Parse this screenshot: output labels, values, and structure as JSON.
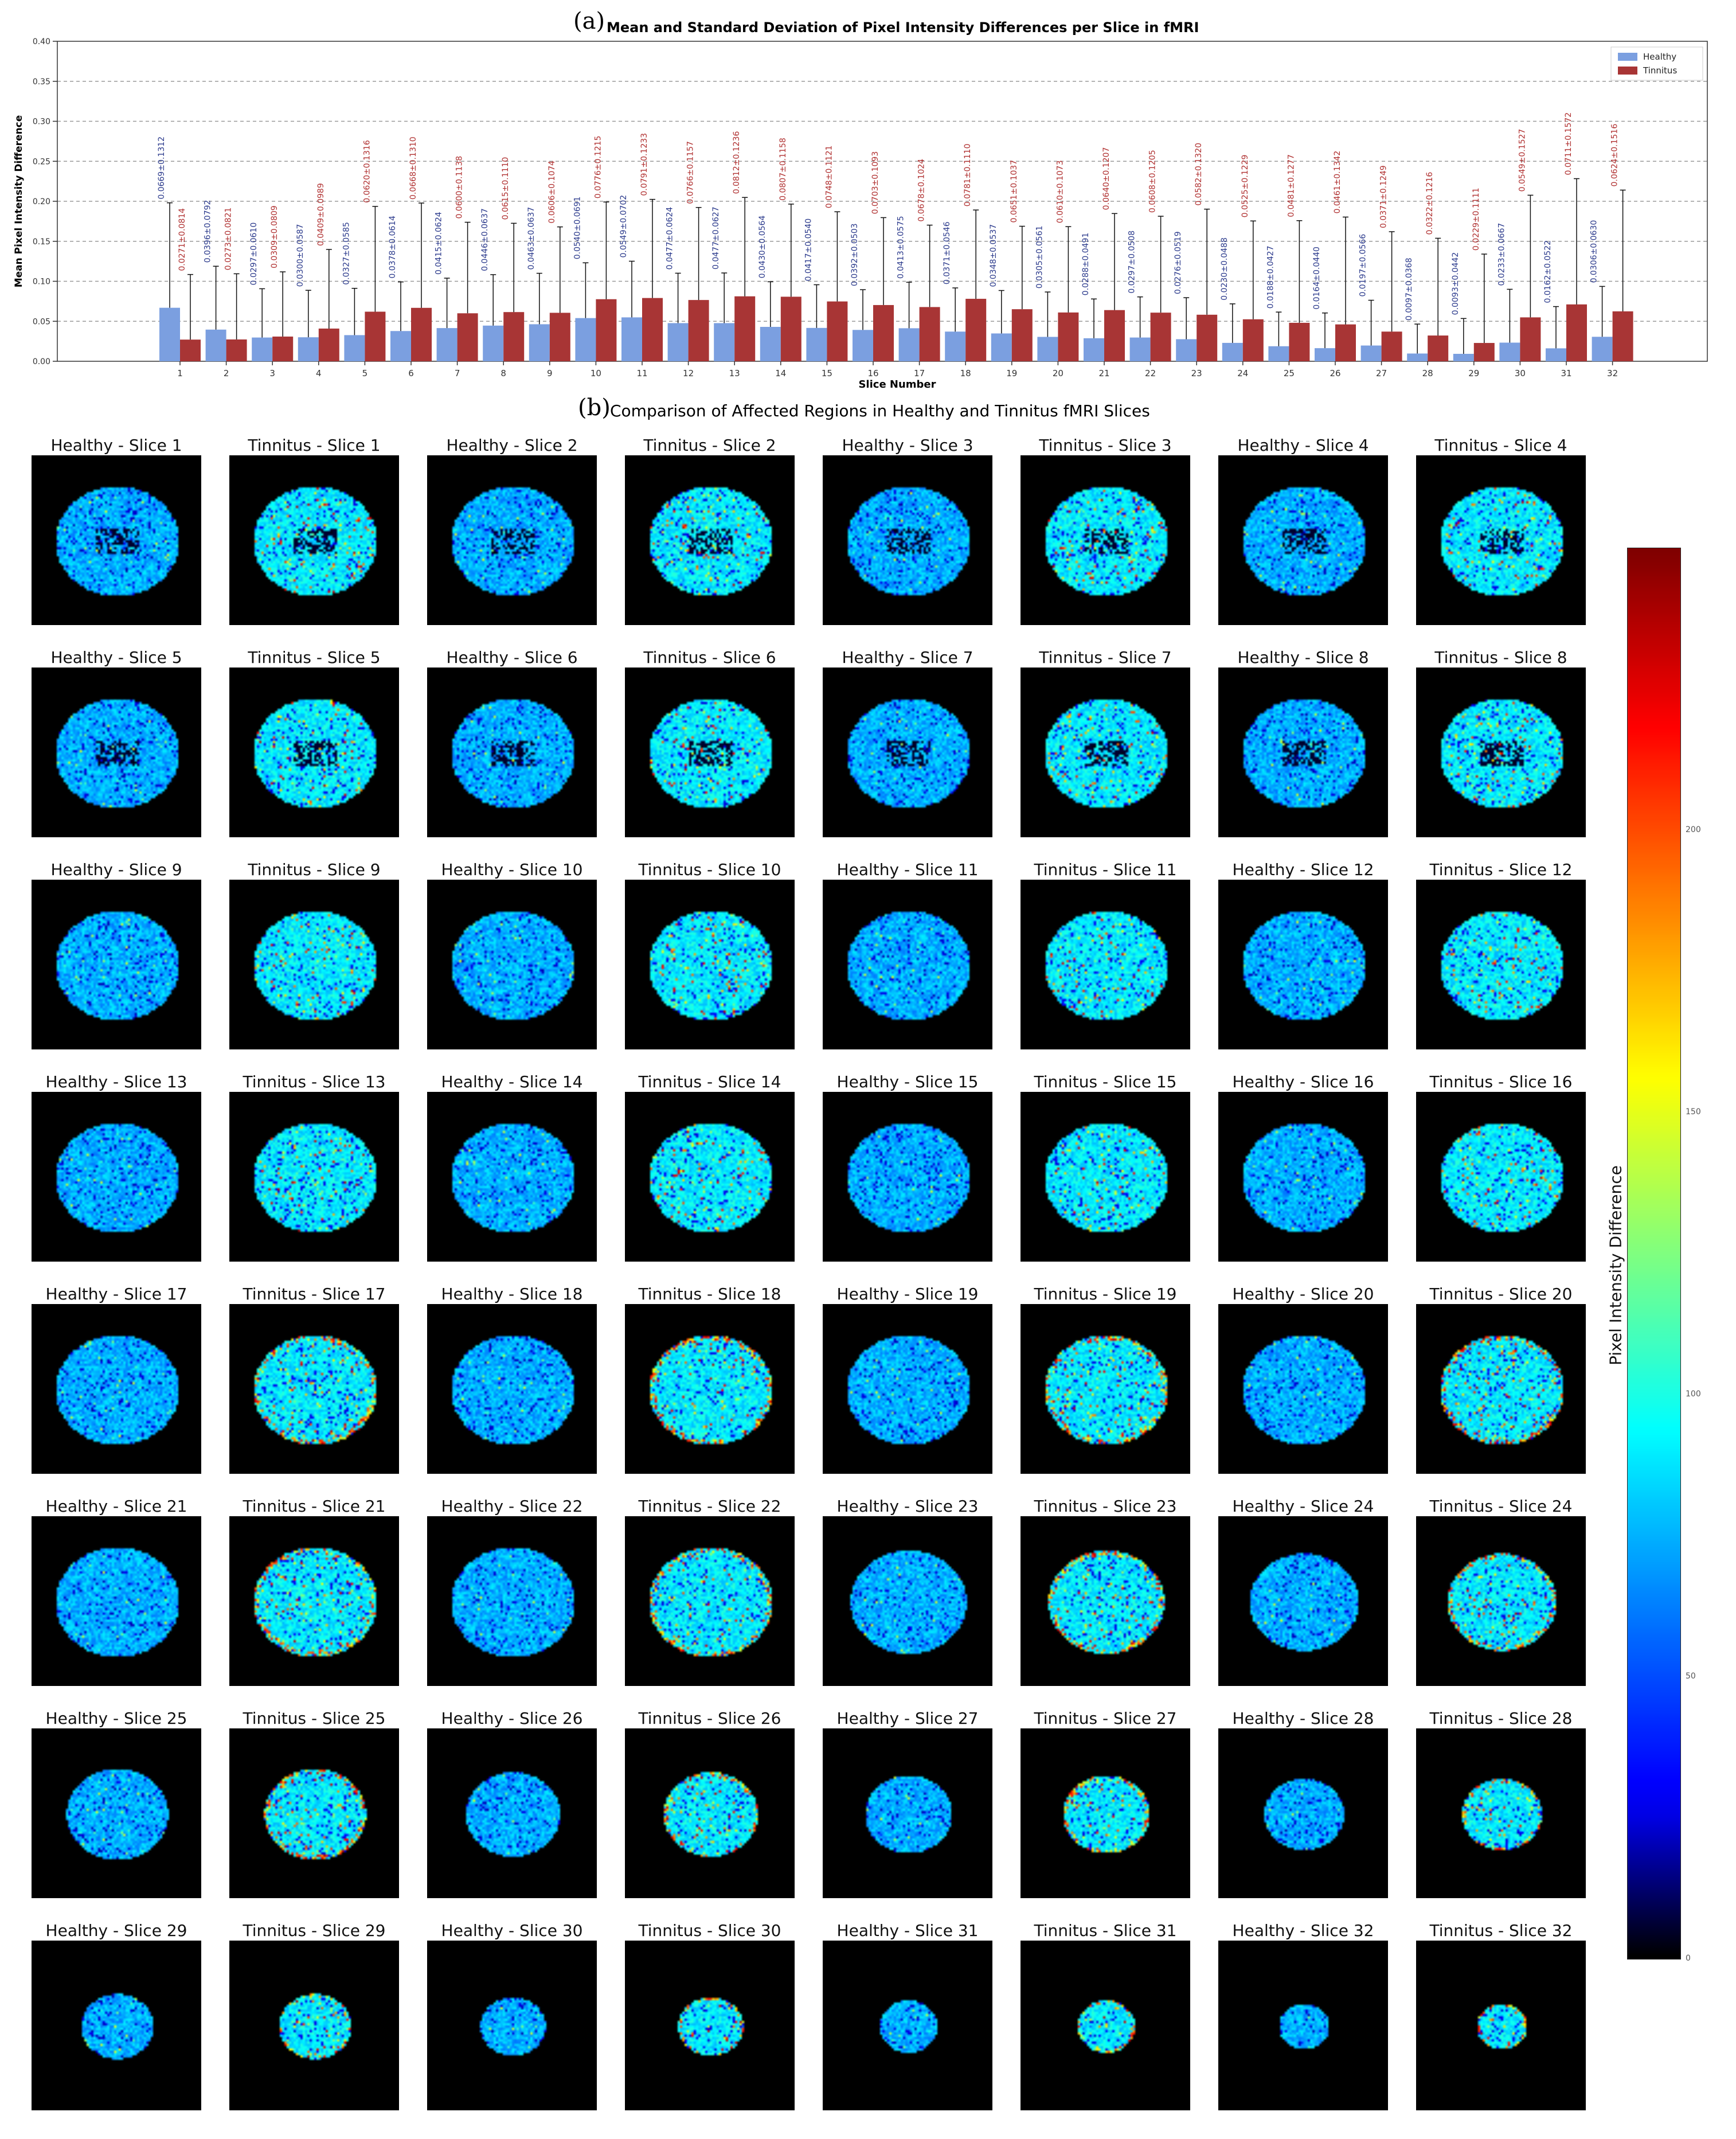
{
  "panel_a": {
    "letter": "(a)",
    "title": "Mean and Standard Deviation of Pixel Intensity Differences per Slice in fMRI"
  },
  "panel_b": {
    "letter": "(b)",
    "title": "Comparison of Affected Regions in Healthy and Tinnitus fMRI Slices"
  },
  "chart_data": [
    {
      "type": "bar",
      "title": "Mean and Standard Deviation of Pixel Intensity Differences per Slice in fMRI",
      "xlabel": "Slice Number",
      "ylabel": "Mean Pixel Intensity Difference",
      "ylim": [
        0,
        0.4
      ],
      "yticks": [
        "0.00",
        "0.05",
        "0.10",
        "0.15",
        "0.20",
        "0.25",
        "0.30",
        "0.35",
        "0.40"
      ],
      "grid": true,
      "legend_position": "top-right",
      "categories": [
        "1",
        "2",
        "3",
        "4",
        "5",
        "6",
        "7",
        "8",
        "9",
        "10",
        "11",
        "12",
        "13",
        "14",
        "15",
        "16",
        "17",
        "18",
        "19",
        "20",
        "21",
        "22",
        "23",
        "24",
        "25",
        "26",
        "27",
        "28",
        "29",
        "30",
        "31",
        "32"
      ],
      "series": [
        {
          "name": "Healthy",
          "color": "#7b9fe0",
          "label_color": "#2b3a8c",
          "values": [
            0.0669,
            0.0396,
            0.0297,
            0.03,
            0.0327,
            0.0378,
            0.0415,
            0.0446,
            0.0463,
            0.054,
            0.0549,
            0.0477,
            0.0477,
            0.043,
            0.0417,
            0.0392,
            0.0413,
            0.0371,
            0.0348,
            0.0305,
            0.0288,
            0.0297,
            0.0276,
            0.023,
            0.0188,
            0.0164,
            0.0197,
            0.0097,
            0.0093,
            0.0233,
            0.0162,
            0.0306
          ],
          "std": [
            0.1312,
            0.0792,
            0.061,
            0.0587,
            0.0585,
            0.0614,
            0.0624,
            0.0637,
            0.0637,
            0.0691,
            0.0702,
            0.0624,
            0.0627,
            0.0564,
            0.054,
            0.0503,
            0.0575,
            0.0546,
            0.0537,
            0.0561,
            0.0491,
            0.0508,
            0.0519,
            0.0488,
            0.0427,
            0.044,
            0.0566,
            0.0368,
            0.0442,
            0.0667,
            0.0522,
            0.063
          ],
          "labels": [
            "0.0669±0.1312",
            "0.0396±0.0792",
            "0.0297±0.0610",
            "0.0300±0.0587",
            "0.0327±0.0585",
            "0.0378±0.0614",
            "0.0415±0.0624",
            "0.0446±0.0637",
            "0.0463±0.0637",
            "0.0540±0.0691",
            "0.0549±0.0702",
            "0.0477±0.0624",
            "0.0477±0.0627",
            "0.0430±0.0564",
            "0.0417±0.0540",
            "0.0392±0.0503",
            "0.0413±0.0575",
            "0.0371±0.0546",
            "0.0348±0.0537",
            "0.0305±0.0561",
            "0.0288±0.0491",
            "0.0297±0.0508",
            "0.0276±0.0519",
            "0.0230±0.0488",
            "0.0188±0.0427",
            "0.0164±0.0440",
            "0.0197±0.0566",
            "0.0097±0.0368",
            "0.0093±0.0442",
            "0.0233±0.0667",
            "0.0162±0.0522",
            "0.0306±0.0630"
          ]
        },
        {
          "name": "Tinnitus",
          "color": "#a83535",
          "label_color": "#b03030",
          "values": [
            0.0271,
            0.0273,
            0.0309,
            0.0409,
            0.062,
            0.0668,
            0.06,
            0.0615,
            0.0606,
            0.0776,
            0.0791,
            0.0766,
            0.0812,
            0.0807,
            0.0748,
            0.0703,
            0.0678,
            0.0781,
            0.0651,
            0.061,
            0.064,
            0.0608,
            0.0582,
            0.0525,
            0.0481,
            0.0461,
            0.0371,
            0.0322,
            0.0229,
            0.0549,
            0.0711,
            0.0624
          ],
          "std": [
            0.0814,
            0.0821,
            0.0809,
            0.0989,
            0.1316,
            0.131,
            0.1138,
            0.111,
            0.1074,
            0.1215,
            0.1233,
            0.1157,
            0.1236,
            0.1158,
            0.1121,
            0.1093,
            0.1024,
            0.111,
            0.1037,
            0.1073,
            0.1207,
            0.1205,
            0.132,
            0.1229,
            0.1277,
            0.1342,
            0.1249,
            0.1216,
            0.1111,
            0.1527,
            0.1572,
            0.1516
          ],
          "labels": [
            "0.0271±0.0814",
            "0.0273±0.0821",
            "0.0309±0.0809",
            "0.0409±0.0989",
            "0.0620±0.1316",
            "0.0668±0.1310",
            "0.0600±0.1138",
            "0.0615±0.1110",
            "0.0606±0.1074",
            "0.0776±0.1215",
            "0.0791±0.1233",
            "0.0766±0.1157",
            "0.0812±0.1236",
            "0.0807±0.1158",
            "0.0748±0.1121",
            "0.0703±0.1093",
            "0.0678±0.1024",
            "0.0781±0.1110",
            "0.0651±0.1037",
            "0.0610±0.1073",
            "0.0640±0.1207",
            "0.0608±0.1205",
            "0.0582±0.1320",
            "0.0525±0.1229",
            "0.0481±0.1277",
            "0.0461±0.1342",
            "0.0371±0.1249",
            "0.0322±0.1216",
            "0.0229±0.1111",
            "0.0549±0.1527",
            "0.0711±0.1572",
            "0.0624±0.1516"
          ]
        }
      ]
    },
    {
      "type": "heatmap",
      "title": "Comparison of Affected Regions in Healthy and Tinnitus fMRI Slices",
      "colormap": "jet",
      "colorbar": {
        "label": "Pixel Intensity Difference",
        "range": [
          0,
          250
        ],
        "ticks": [
          "0",
          "50",
          "100",
          "150",
          "200"
        ]
      },
      "tiles": [
        "Healthy - Slice 1",
        "Tinnitus - Slice 1",
        "Healthy - Slice 2",
        "Tinnitus - Slice 2",
        "Healthy - Slice 3",
        "Tinnitus - Slice 3",
        "Healthy - Slice 4",
        "Tinnitus - Slice 4",
        "Healthy - Slice 5",
        "Tinnitus - Slice 5",
        "Healthy - Slice 6",
        "Tinnitus - Slice 6",
        "Healthy - Slice 7",
        "Tinnitus - Slice 7",
        "Healthy - Slice 8",
        "Tinnitus - Slice 8",
        "Healthy - Slice 9",
        "Tinnitus - Slice 9",
        "Healthy - Slice 10",
        "Tinnitus - Slice 10",
        "Healthy - Slice 11",
        "Tinnitus - Slice 11",
        "Healthy - Slice 12",
        "Tinnitus - Slice 12",
        "Healthy - Slice 13",
        "Tinnitus - Slice 13",
        "Healthy - Slice 14",
        "Tinnitus - Slice 14",
        "Healthy - Slice 15",
        "Tinnitus - Slice 15",
        "Healthy - Slice 16",
        "Tinnitus - Slice 16",
        "Healthy - Slice 17",
        "Tinnitus - Slice 17",
        "Healthy - Slice 18",
        "Tinnitus - Slice 18",
        "Healthy - Slice 19",
        "Tinnitus - Slice 19",
        "Healthy - Slice 20",
        "Tinnitus - Slice 20",
        "Healthy - Slice 21",
        "Tinnitus - Slice 21",
        "Healthy - Slice 22",
        "Tinnitus - Slice 22",
        "Healthy - Slice 23",
        "Tinnitus - Slice 23",
        "Healthy - Slice 24",
        "Tinnitus - Slice 24",
        "Healthy - Slice 25",
        "Tinnitus - Slice 25",
        "Healthy - Slice 26",
        "Tinnitus - Slice 26",
        "Healthy - Slice 27",
        "Tinnitus - Slice 27",
        "Healthy - Slice 28",
        "Tinnitus - Slice 28",
        "Healthy - Slice 29",
        "Tinnitus - Slice 29",
        "Healthy - Slice 30",
        "Tinnitus - Slice 30",
        "Healthy - Slice 31",
        "Tinnitus - Slice 31",
        "Healthy - Slice 32",
        "Tinnitus - Slice 32"
      ]
    }
  ]
}
